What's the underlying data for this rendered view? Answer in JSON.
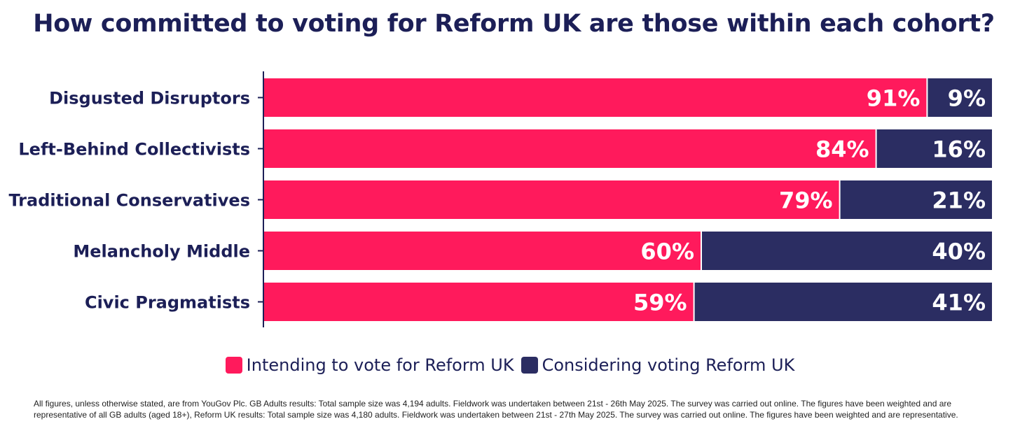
{
  "chart_data": {
    "type": "bar",
    "orientation": "horizontal",
    "stacked": true,
    "title": "How committed to voting for Reform UK are those within each cohort?",
    "categories": [
      "Disgusted Disruptors",
      "Left-Behind Collectivists",
      "Traditional Conservatives",
      "Melancholy Middle",
      "Civic Pragmatists"
    ],
    "series": [
      {
        "name": "Intending to vote for Reform UK",
        "values": [
          91,
          84,
          79,
          60,
          59
        ],
        "labels": [
          "91%",
          "84%",
          "79%",
          "60%",
          "59%"
        ],
        "color": "#ff1a5c"
      },
      {
        "name": "Considering voting Reform UK",
        "values": [
          9,
          16,
          21,
          40,
          41
        ],
        "labels": [
          "9%",
          "16%",
          "21%",
          "40%",
          "41%"
        ],
        "color": "#2b2d62"
      }
    ],
    "xlim": [
      0,
      100
    ],
    "legend_position": "bottom",
    "grid": false
  },
  "colors": {
    "title": "#1c1f57",
    "axis": "#1c1f57"
  },
  "footnote": "All figures, unless otherwise stated, are from YouGov Plc. GB Adults results: Total sample size was 4,194 adults. Fieldwork was undertaken between 21st - 26th May 2025. The survey was carried out online. The figures have been weighted and are representative of all GB adults (aged 18+), Reform UK results: Total sample size was 4,180 adults. Fieldwork was undertaken between 21st - 27th May 2025. The survey was carried out online. The figures have been weighted and are representative."
}
